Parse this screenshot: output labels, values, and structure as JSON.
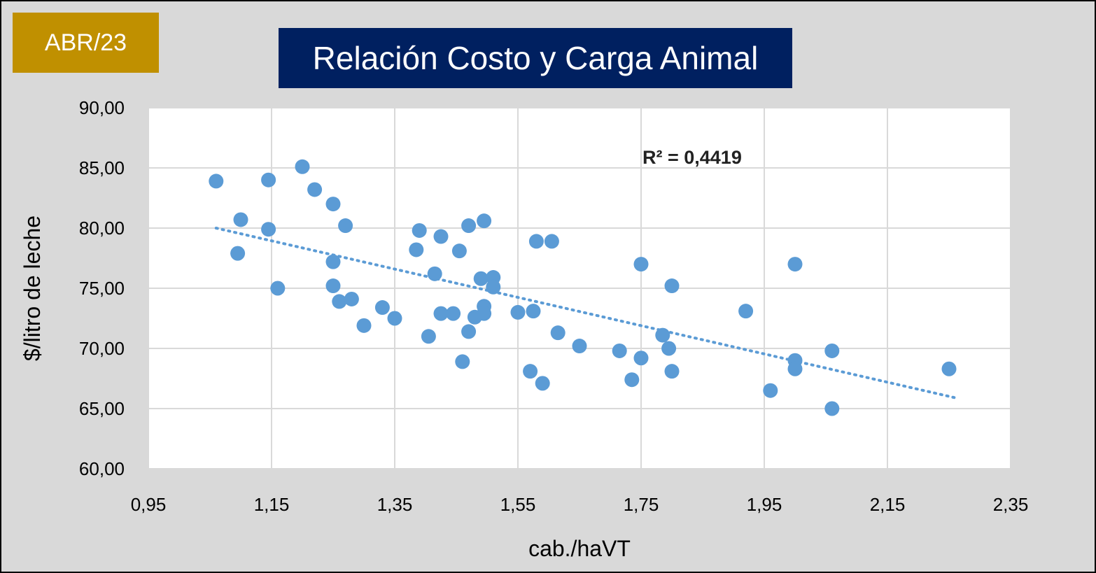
{
  "badge": "ABR/23",
  "colors": {
    "badge_bg": "#c09000",
    "title_bg": "#002060",
    "points": "#5b9bd5",
    "trend": "#5b9bd5"
  },
  "chart_data": {
    "type": "scatter",
    "title": "Relación Costo y Carga Animal",
    "xlabel": "cab./haVT",
    "ylabel": "$/litro de leche",
    "xlim": [
      0.95,
      2.35
    ],
    "ylim": [
      60,
      90
    ],
    "x_ticks": [
      "0,95",
      "1,15",
      "1,35",
      "1,55",
      "1,75",
      "1,95",
      "2,15",
      "2,35"
    ],
    "y_ticks": [
      "90,00",
      "85,00",
      "80,00",
      "75,00",
      "70,00",
      "65,00",
      "60,00"
    ],
    "x_tick_values": [
      0.95,
      1.15,
      1.35,
      1.55,
      1.75,
      1.95,
      2.15,
      2.35
    ],
    "y_tick_values": [
      90,
      85,
      80,
      75,
      70,
      65,
      60
    ],
    "grid": true,
    "annotation": "R² = 0,4419",
    "trendline": {
      "type": "linear",
      "dashed": true,
      "x": [
        1.06,
        2.26
      ],
      "y": [
        80.0,
        65.9
      ]
    },
    "points": [
      [
        1.06,
        83.9
      ],
      [
        1.1,
        80.7
      ],
      [
        1.095,
        77.9
      ],
      [
        1.145,
        84.0
      ],
      [
        1.145,
        79.9
      ],
      [
        1.16,
        75.0
      ],
      [
        1.2,
        85.1
      ],
      [
        1.22,
        83.2
      ],
      [
        1.25,
        82.0
      ],
      [
        1.25,
        77.2
      ],
      [
        1.25,
        75.2
      ],
      [
        1.26,
        73.9
      ],
      [
        1.27,
        80.2
      ],
      [
        1.28,
        74.1
      ],
      [
        1.3,
        71.9
      ],
      [
        1.33,
        73.4
      ],
      [
        1.35,
        72.5
      ],
      [
        1.385,
        78.2
      ],
      [
        1.39,
        79.8
      ],
      [
        1.405,
        71.0
      ],
      [
        1.415,
        76.2
      ],
      [
        1.425,
        79.3
      ],
      [
        1.425,
        72.9
      ],
      [
        1.445,
        72.9
      ],
      [
        1.455,
        78.1
      ],
      [
        1.46,
        68.9
      ],
      [
        1.47,
        71.4
      ],
      [
        1.47,
        80.2
      ],
      [
        1.48,
        72.6
      ],
      [
        1.49,
        75.8
      ],
      [
        1.495,
        80.6
      ],
      [
        1.495,
        73.5
      ],
      [
        1.495,
        72.9
      ],
      [
        1.51,
        75.9
      ],
      [
        1.51,
        75.1
      ],
      [
        1.55,
        73.0
      ],
      [
        1.57,
        68.1
      ],
      [
        1.575,
        73.1
      ],
      [
        1.58,
        78.9
      ],
      [
        1.59,
        67.1
      ],
      [
        1.605,
        78.9
      ],
      [
        1.615,
        71.3
      ],
      [
        1.65,
        70.2
      ],
      [
        1.715,
        69.8
      ],
      [
        1.735,
        67.4
      ],
      [
        1.75,
        69.2
      ],
      [
        1.75,
        77.0
      ],
      [
        1.785,
        71.1
      ],
      [
        1.795,
        70.0
      ],
      [
        1.8,
        75.2
      ],
      [
        1.8,
        68.1
      ],
      [
        1.92,
        73.1
      ],
      [
        1.96,
        66.5
      ],
      [
        2.0,
        77.0
      ],
      [
        2.0,
        69.0
      ],
      [
        2.0,
        68.3
      ],
      [
        2.06,
        69.8
      ],
      [
        2.06,
        65.0
      ],
      [
        2.25,
        68.3
      ]
    ]
  }
}
